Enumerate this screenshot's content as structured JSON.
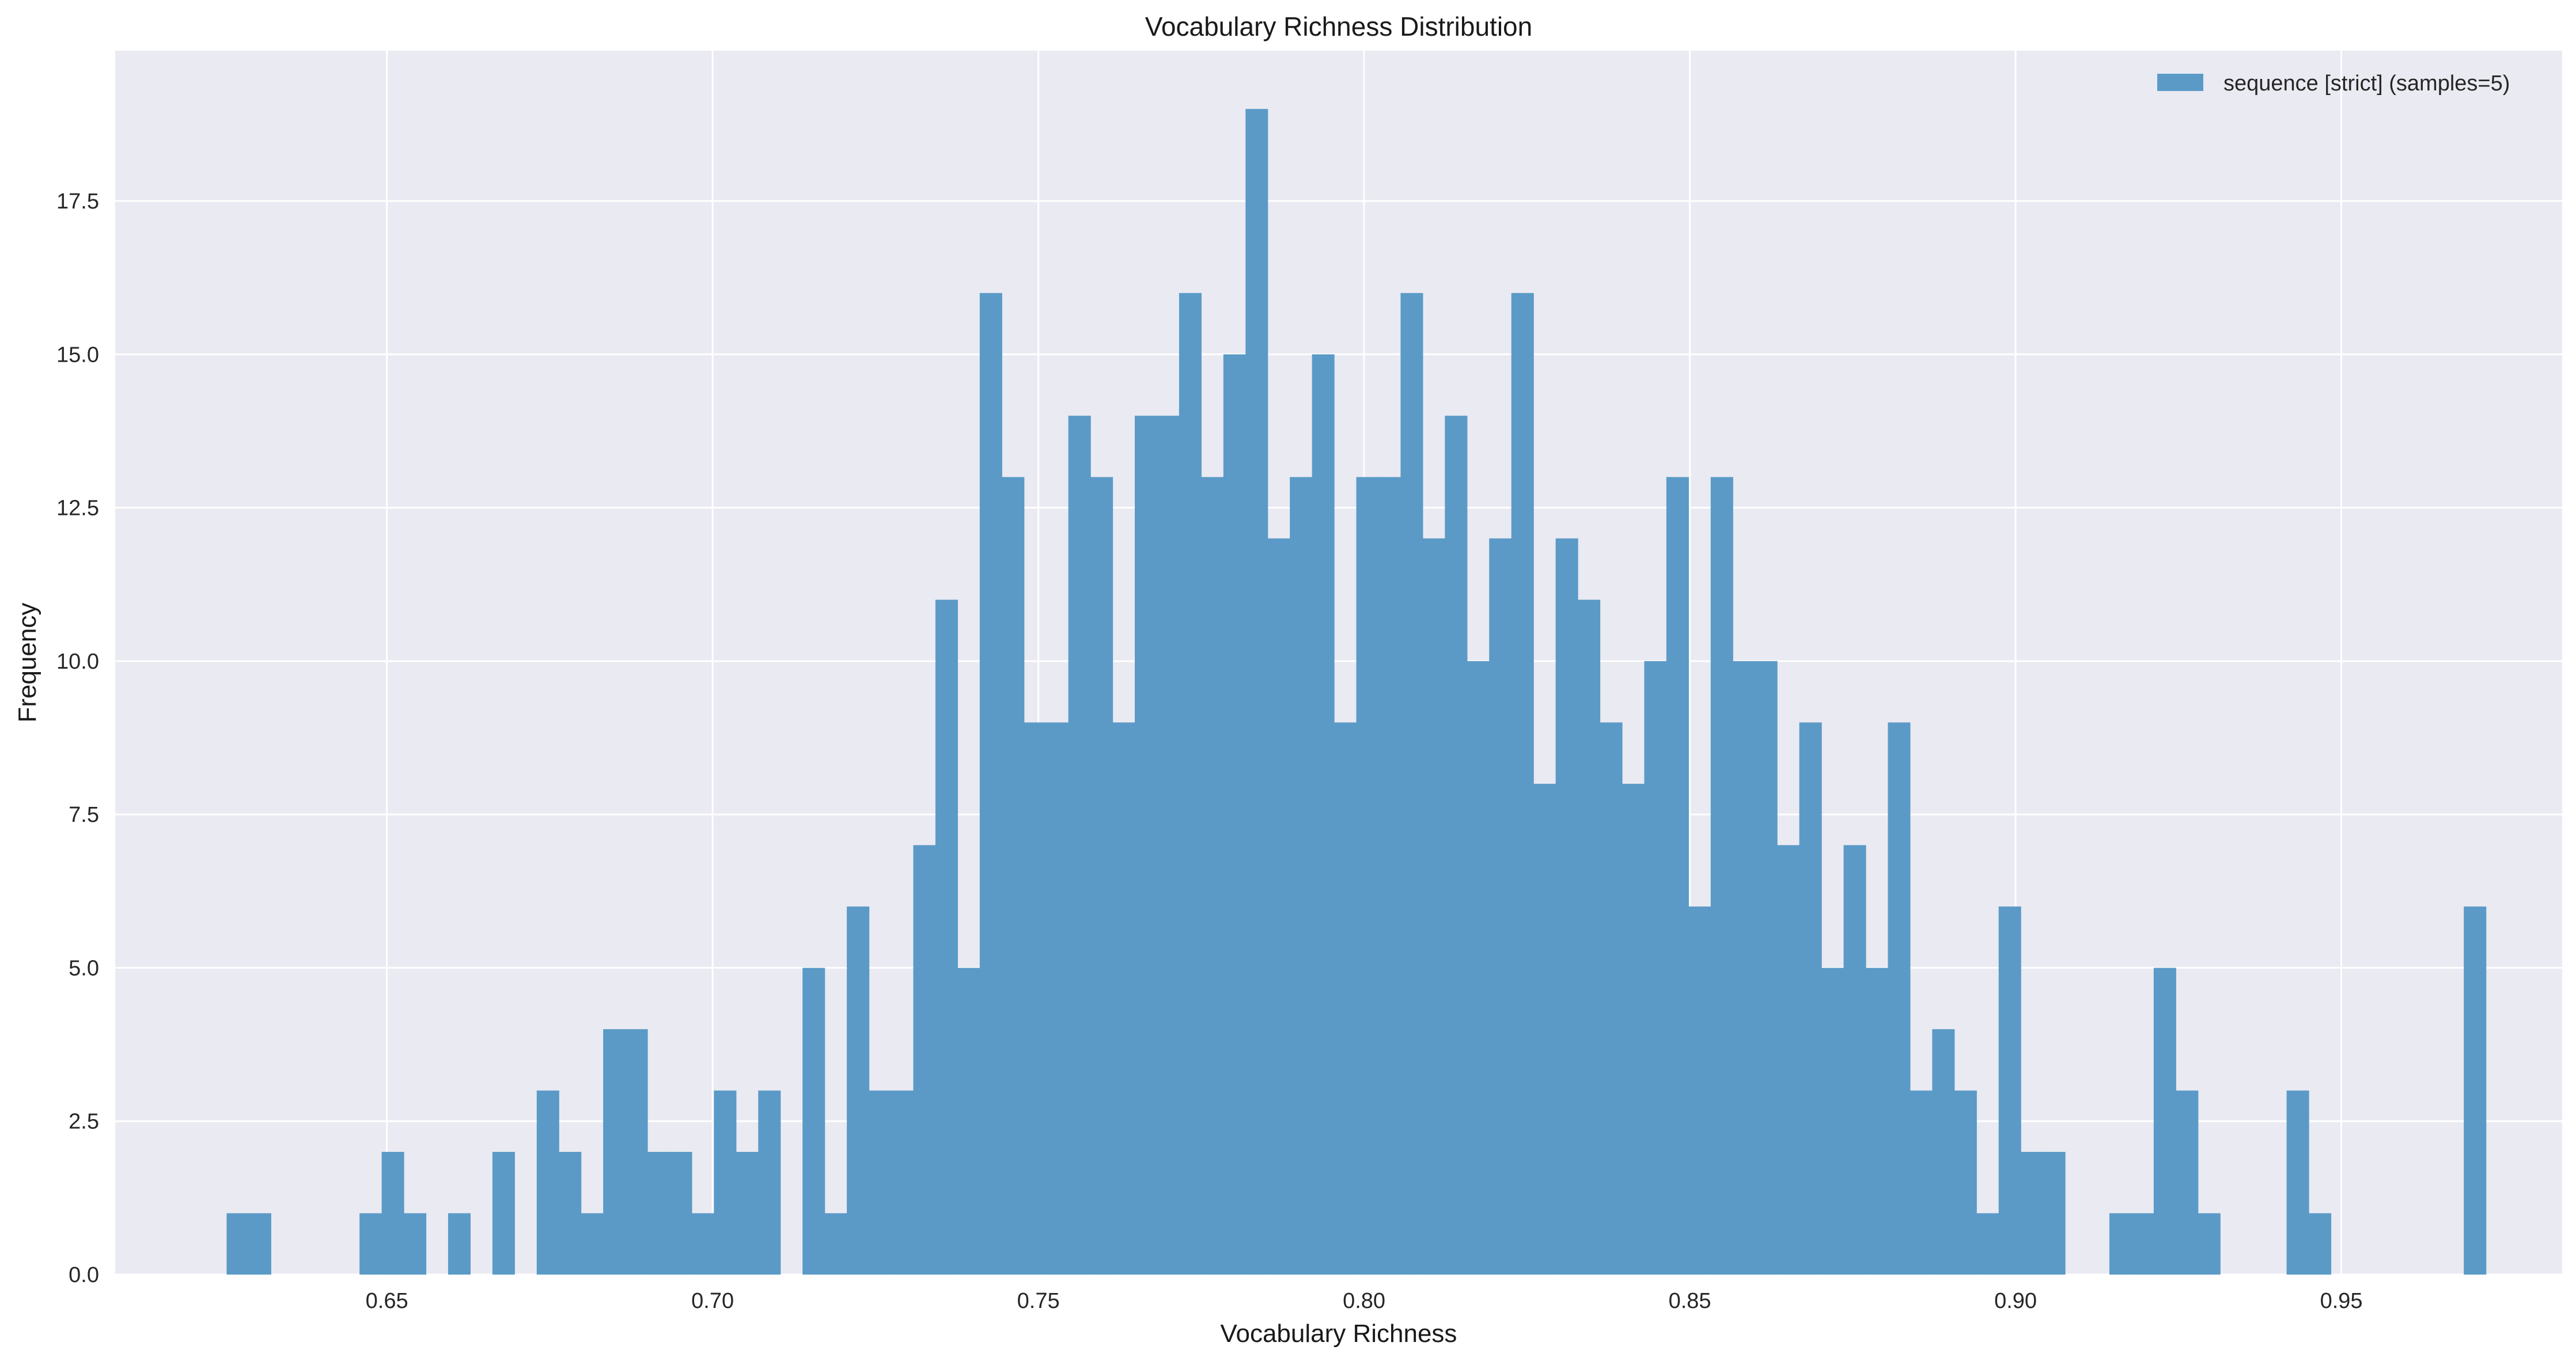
{
  "chart_data": {
    "type": "bar",
    "title": "Vocabulary Richness Distribution",
    "xlabel": "Vocabulary Richness",
    "ylabel": "Frequency",
    "xlim": [
      0.6083,
      0.9839
    ],
    "ylim": [
      0,
      19.95
    ],
    "xticks": [
      "0.65",
      "0.70",
      "0.75",
      "0.80",
      "0.85",
      "0.90",
      "0.95"
    ],
    "xtick_values": [
      0.65,
      0.7,
      0.75,
      0.8,
      0.85,
      0.9,
      0.95
    ],
    "yticks": [
      "0.0",
      "2.5",
      "5.0",
      "7.5",
      "10.0",
      "12.5",
      "15.0",
      "17.5"
    ],
    "ytick_values": [
      0,
      2.5,
      5,
      7.5,
      10,
      12.5,
      15,
      17.5
    ],
    "grid": true,
    "legend": "top-right",
    "bin_start": 0.6254,
    "bin_width": 0.0034,
    "series": [
      {
        "name": "sequence [strict] (samples=5)",
        "color": "#5b9ac7",
        "values": [
          1,
          1,
          0,
          0,
          0,
          0,
          1,
          2,
          1,
          0,
          1,
          0,
          2,
          0,
          3,
          2,
          1,
          4,
          4,
          2,
          2,
          1,
          3,
          2,
          3,
          0,
          5,
          1,
          6,
          3,
          3,
          7,
          11,
          5,
          16,
          13,
          9,
          9,
          14,
          13,
          9,
          14,
          14,
          16,
          13,
          15,
          19,
          12,
          13,
          15,
          9,
          13,
          13,
          16,
          12,
          14,
          10,
          12,
          16,
          8,
          12,
          11,
          9,
          8,
          10,
          13,
          6,
          13,
          10,
          10,
          7,
          9,
          5,
          7,
          5,
          9,
          3,
          4,
          3,
          1,
          6,
          2,
          2,
          0,
          0,
          1,
          1,
          5,
          3,
          1,
          0,
          0,
          0,
          3,
          1,
          0,
          0,
          0,
          0,
          0,
          0,
          6
        ]
      }
    ]
  }
}
